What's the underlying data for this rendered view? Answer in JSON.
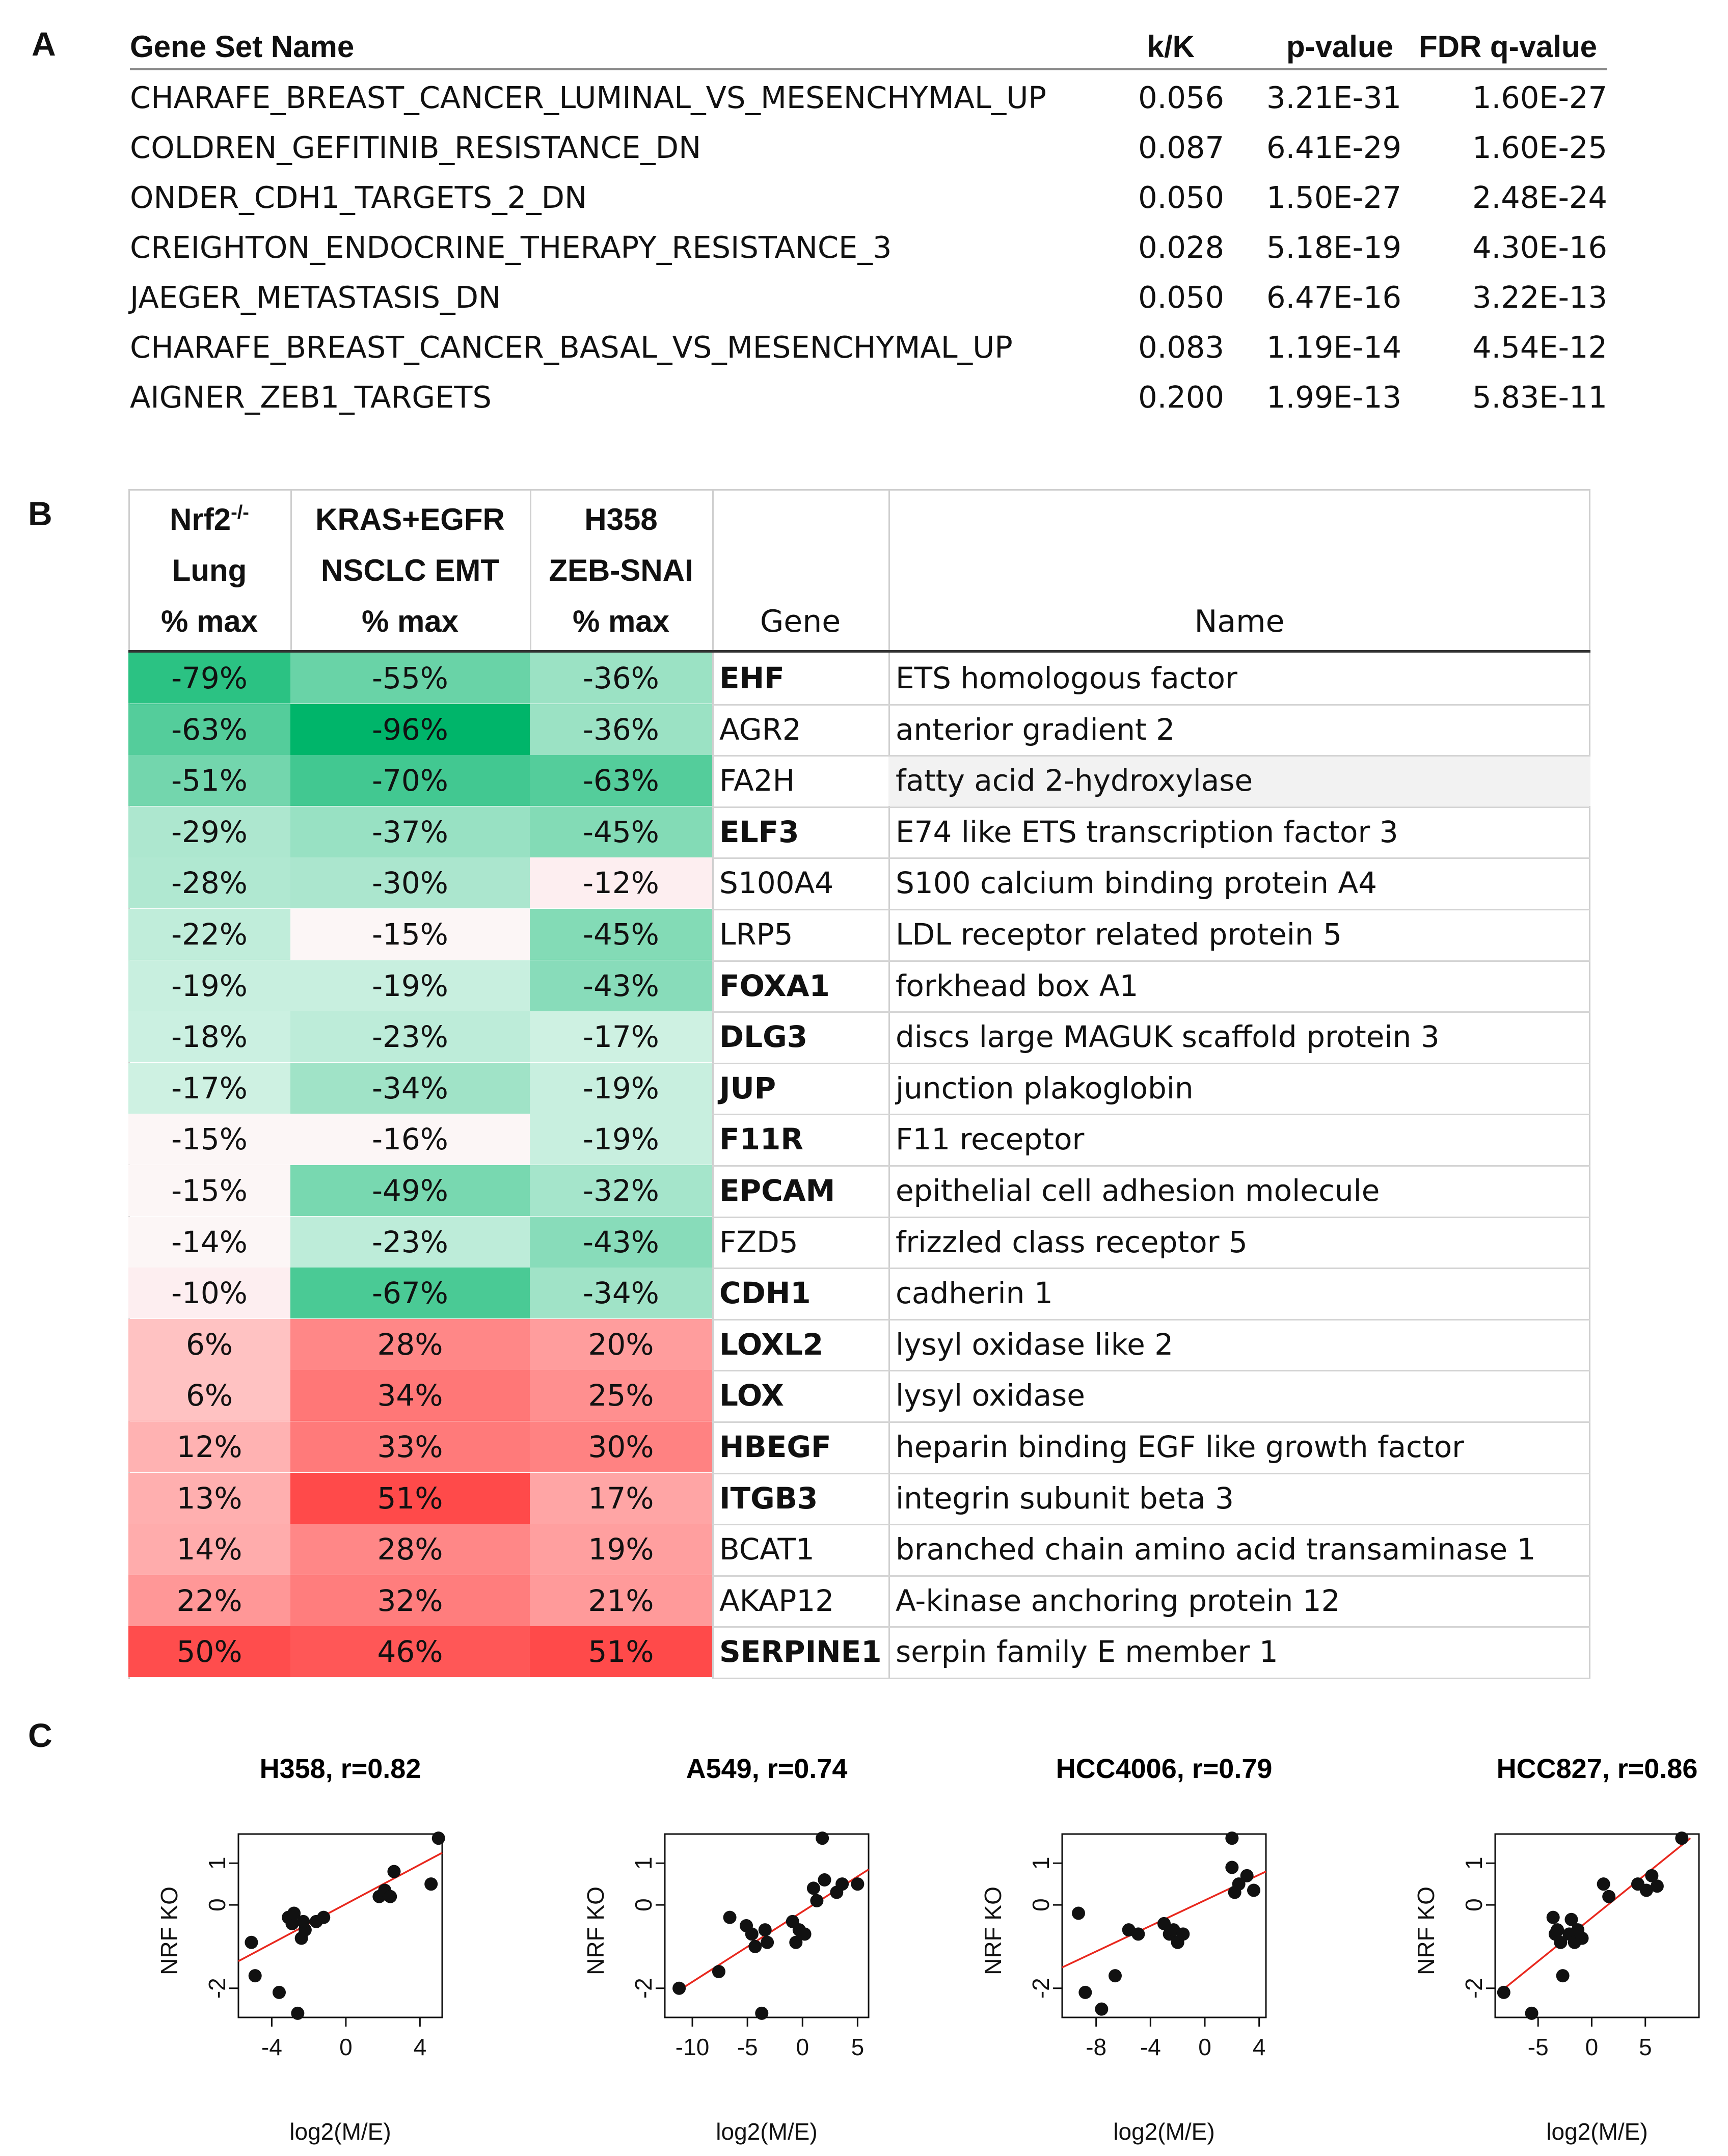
{
  "panel_a": {
    "letter": "A",
    "headers": {
      "name": "Gene Set Name",
      "kk": "k/K",
      "p": "p-value",
      "fdr": "FDR q-value"
    },
    "rows": [
      {
        "name": "CHARAFE_BREAST_CANCER_LUMINAL_VS_MESENCHYMAL_UP",
        "kk": "0.056",
        "p": "3.21E-31",
        "fdr": "1.60E-27"
      },
      {
        "name": "COLDREN_GEFITINIB_RESISTANCE_DN",
        "kk": "0.087",
        "p": "6.41E-29",
        "fdr": "1.60E-25"
      },
      {
        "name": "ONDER_CDH1_TARGETS_2_DN",
        "kk": "0.050",
        "p": "1.50E-27",
        "fdr": "2.48E-24"
      },
      {
        "name": "CREIGHTON_ENDOCRINE_THERAPY_RESISTANCE_3",
        "kk": "0.028",
        "p": "5.18E-19",
        "fdr": "4.30E-16"
      },
      {
        "name": "JAEGER_METASTASIS_DN",
        "kk": "0.050",
        "p": "6.47E-16",
        "fdr": "3.22E-13"
      },
      {
        "name": "CHARAFE_BREAST_CANCER_BASAL_VS_MESENCHYMAL_UP",
        "kk": "0.083",
        "p": "1.19E-14",
        "fdr": "4.54E-12"
      },
      {
        "name": "AIGNER_ZEB1_TARGETS",
        "kk": "0.200",
        "p": "1.99E-13",
        "fdr": "5.83E-11"
      }
    ]
  },
  "panel_b": {
    "letter": "B",
    "headers": {
      "col1": {
        "line1": "Nrf2",
        "sup": "-/-",
        "line2": "Lung",
        "line3": "% max"
      },
      "col2": {
        "line1": "KRAS+EGFR",
        "line2": "NSCLC EMT",
        "line3": "% max"
      },
      "col3": {
        "line1": "H358",
        "line2": "ZEB-SNAI",
        "line3": "% max"
      },
      "gene": "Gene",
      "name": "Name"
    },
    "colors": {
      "negative": "#00b56a",
      "positive": "#ff4a4a"
    },
    "rows": [
      {
        "v": [
          "-79%",
          "-55%",
          "-36%"
        ],
        "n": [
          -79,
          -55,
          -36
        ],
        "gene": "EHF",
        "bold": true,
        "name": "ETS homologous factor"
      },
      {
        "v": [
          "-63%",
          "-96%",
          "-36%"
        ],
        "n": [
          -63,
          -96,
          -36
        ],
        "gene": "AGR2",
        "bold": false,
        "name": "anterior gradient 2"
      },
      {
        "v": [
          "-51%",
          "-70%",
          "-63%"
        ],
        "n": [
          -51,
          -70,
          -63
        ],
        "gene": "FA2H",
        "bold": false,
        "name": "fatty acid 2-hydroxylase"
      },
      {
        "v": [
          "-29%",
          "-37%",
          "-45%"
        ],
        "n": [
          -29,
          -37,
          -45
        ],
        "gene": "ELF3",
        "bold": true,
        "name": "E74 like ETS transcription factor 3"
      },
      {
        "v": [
          "-28%",
          "-30%",
          "-12%"
        ],
        "n": [
          -28,
          -30,
          -12
        ],
        "gene": "S100A4",
        "bold": false,
        "name": "S100 calcium binding protein A4"
      },
      {
        "v": [
          "-22%",
          "-15%",
          "-45%"
        ],
        "n": [
          -22,
          -15,
          -45
        ],
        "gene": "LRP5",
        "bold": false,
        "name": "LDL receptor related protein 5"
      },
      {
        "v": [
          "-19%",
          "-19%",
          "-43%"
        ],
        "n": [
          -19,
          -19,
          -43
        ],
        "gene": "FOXA1",
        "bold": true,
        "name": "forkhead box A1"
      },
      {
        "v": [
          "-18%",
          "-23%",
          "-17%"
        ],
        "n": [
          -18,
          -23,
          -17
        ],
        "gene": "DLG3",
        "bold": true,
        "name": "discs large MAGUK scaffold protein 3"
      },
      {
        "v": [
          "-17%",
          "-34%",
          "-19%"
        ],
        "n": [
          -17,
          -34,
          -19
        ],
        "gene": "JUP",
        "bold": true,
        "name": "junction plakoglobin"
      },
      {
        "v": [
          "-15%",
          "-16%",
          "-19%"
        ],
        "n": [
          -15,
          -16,
          -19
        ],
        "gene": "F11R",
        "bold": true,
        "name": "F11 receptor"
      },
      {
        "v": [
          "-15%",
          "-49%",
          "-32%"
        ],
        "n": [
          -15,
          -49,
          -32
        ],
        "gene": "EPCAM",
        "bold": true,
        "name": "epithelial cell adhesion molecule"
      },
      {
        "v": [
          "-14%",
          "-23%",
          "-43%"
        ],
        "n": [
          -14,
          -23,
          -43
        ],
        "gene": "FZD5",
        "bold": false,
        "name": "frizzled class receptor 5"
      },
      {
        "v": [
          "-10%",
          "-67%",
          "-34%"
        ],
        "n": [
          -10,
          -67,
          -34
        ],
        "gene": "CDH1",
        "bold": true,
        "name": "cadherin 1"
      },
      {
        "v": [
          "6%",
          "28%",
          "20%"
        ],
        "n": [
          6,
          28,
          20
        ],
        "gene": "LOXL2",
        "bold": true,
        "name": "lysyl oxidase like 2"
      },
      {
        "v": [
          "6%",
          "34%",
          "25%"
        ],
        "n": [
          6,
          34,
          25
        ],
        "gene": "LOX",
        "bold": true,
        "name": "lysyl oxidase"
      },
      {
        "v": [
          "12%",
          "33%",
          "30%"
        ],
        "n": [
          12,
          33,
          30
        ],
        "gene": "HBEGF",
        "bold": true,
        "name": "heparin binding EGF like growth factor"
      },
      {
        "v": [
          "13%",
          "51%",
          "17%"
        ],
        "n": [
          13,
          51,
          17
        ],
        "gene": "ITGB3",
        "bold": true,
        "name": "integrin subunit beta 3"
      },
      {
        "v": [
          "14%",
          "28%",
          "19%"
        ],
        "n": [
          14,
          28,
          19
        ],
        "gene": "BCAT1",
        "bold": false,
        "name": "branched chain amino acid transaminase 1"
      },
      {
        "v": [
          "22%",
          "32%",
          "21%"
        ],
        "n": [
          22,
          32,
          21
        ],
        "gene": "AKAP12",
        "bold": false,
        "name": "A-kinase anchoring protein 12"
      },
      {
        "v": [
          "50%",
          "46%",
          "51%"
        ],
        "n": [
          50,
          46,
          51
        ],
        "gene": "SERPINE1",
        "bold": true,
        "name": "serpin family E member 1"
      }
    ]
  },
  "panel_c": {
    "letter": "C",
    "line_color": "#e8281e",
    "chart_data": [
      {
        "type": "scatter",
        "title": "H358, r=0.82",
        "xlabel": "log2(M/E)",
        "ylabel": "NRF KO",
        "xlim": [
          -5.8,
          5.2
        ],
        "ylim": [
          -2.7,
          1.7
        ],
        "xticks": [
          -4,
          0,
          4
        ],
        "yticks": [
          -2,
          0,
          1
        ],
        "points": [
          [
            -5.1,
            -0.9
          ],
          [
            -4.9,
            -1.7
          ],
          [
            -3.6,
            -2.1
          ],
          [
            -3.1,
            -0.3
          ],
          [
            -2.9,
            -0.45
          ],
          [
            -2.8,
            -0.2
          ],
          [
            -2.6,
            -2.6
          ],
          [
            -2.4,
            -0.8
          ],
          [
            -2.2,
            -0.6
          ],
          [
            -2.3,
            -0.4
          ],
          [
            -1.6,
            -0.4
          ],
          [
            -1.2,
            -0.3
          ],
          [
            1.8,
            0.2
          ],
          [
            2.1,
            0.35
          ],
          [
            2.4,
            0.2
          ],
          [
            2.6,
            0.8
          ],
          [
            4.6,
            0.5
          ],
          [
            5.0,
            1.6
          ]
        ],
        "fit": [
          [
            -5.8,
            -1.35
          ],
          [
            5.2,
            1.25
          ]
        ]
      },
      {
        "type": "scatter",
        "title": "A549, r=0.74",
        "xlabel": "log2(M/E)",
        "ylabel": "NRF KO",
        "xlim": [
          -12.5,
          6
        ],
        "ylim": [
          -2.7,
          1.7
        ],
        "xticks": [
          -10,
          -5,
          0,
          5
        ],
        "yticks": [
          -2,
          0,
          1
        ],
        "points": [
          [
            -11.2,
            -2.0
          ],
          [
            -7.6,
            -1.6
          ],
          [
            -6.6,
            -0.3
          ],
          [
            -5.1,
            -0.5
          ],
          [
            -4.6,
            -0.7
          ],
          [
            -4.3,
            -1.0
          ],
          [
            -3.7,
            -2.6
          ],
          [
            -3.4,
            -0.6
          ],
          [
            -3.2,
            -0.9
          ],
          [
            -0.9,
            -0.4
          ],
          [
            -0.6,
            -0.9
          ],
          [
            -0.3,
            -0.6
          ],
          [
            0.2,
            -0.7
          ],
          [
            1.0,
            0.4
          ],
          [
            1.3,
            0.1
          ],
          [
            1.8,
            1.6
          ],
          [
            2.0,
            0.6
          ],
          [
            3.1,
            0.3
          ],
          [
            3.6,
            0.5
          ],
          [
            5.0,
            0.5
          ]
        ],
        "fit": [
          [
            -11.5,
            -2.1
          ],
          [
            6,
            0.85
          ]
        ]
      },
      {
        "type": "scatter",
        "title": "HCC4006, r=0.79",
        "xlabel": "log2(M/E)",
        "ylabel": "NRF KO",
        "xlim": [
          -10.5,
          4.5
        ],
        "ylim": [
          -2.7,
          1.7
        ],
        "xticks": [
          -8,
          -4,
          0,
          4
        ],
        "yticks": [
          -2,
          0,
          1
        ],
        "points": [
          [
            -9.3,
            -0.2
          ],
          [
            -8.8,
            -2.1
          ],
          [
            -7.6,
            -2.5
          ],
          [
            -6.6,
            -1.7
          ],
          [
            -5.6,
            -0.6
          ],
          [
            -4.9,
            -0.7
          ],
          [
            -3.0,
            -0.45
          ],
          [
            -2.6,
            -0.7
          ],
          [
            -2.3,
            -0.6
          ],
          [
            -2.0,
            -0.9
          ],
          [
            -1.6,
            -0.7
          ],
          [
            2.0,
            1.6
          ],
          [
            2.0,
            0.9
          ],
          [
            2.2,
            0.3
          ],
          [
            2.5,
            0.5
          ],
          [
            3.1,
            0.7
          ],
          [
            3.6,
            0.35
          ]
        ],
        "fit": [
          [
            -10.5,
            -1.5
          ],
          [
            4.5,
            0.8
          ]
        ]
      },
      {
        "type": "scatter",
        "title": "HCC827, r=0.86",
        "xlabel": "log2(M/E)",
        "ylabel": "NRF KO",
        "xlim": [
          -9,
          10
        ],
        "ylim": [
          -2.7,
          1.7
        ],
        "xticks": [
          -5,
          0,
          5
        ],
        "yticks": [
          -2,
          0,
          1
        ],
        "points": [
          [
            -8.2,
            -2.1
          ],
          [
            -5.6,
            -2.6
          ],
          [
            -3.6,
            -0.3
          ],
          [
            -3.4,
            -0.7
          ],
          [
            -3.2,
            -0.6
          ],
          [
            -2.9,
            -0.9
          ],
          [
            -2.7,
            -1.7
          ],
          [
            -2.1,
            -0.7
          ],
          [
            -1.9,
            -0.35
          ],
          [
            -1.6,
            -0.9
          ],
          [
            -1.3,
            -0.6
          ],
          [
            -0.9,
            -0.8
          ],
          [
            1.1,
            0.5
          ],
          [
            1.6,
            0.2
          ],
          [
            4.3,
            0.5
          ],
          [
            5.1,
            0.35
          ],
          [
            5.6,
            0.7
          ],
          [
            6.1,
            0.45
          ],
          [
            8.4,
            1.6
          ]
        ],
        "fit": [
          [
            -8.6,
            -2.1
          ],
          [
            9.2,
            1.6
          ]
        ]
      }
    ]
  }
}
